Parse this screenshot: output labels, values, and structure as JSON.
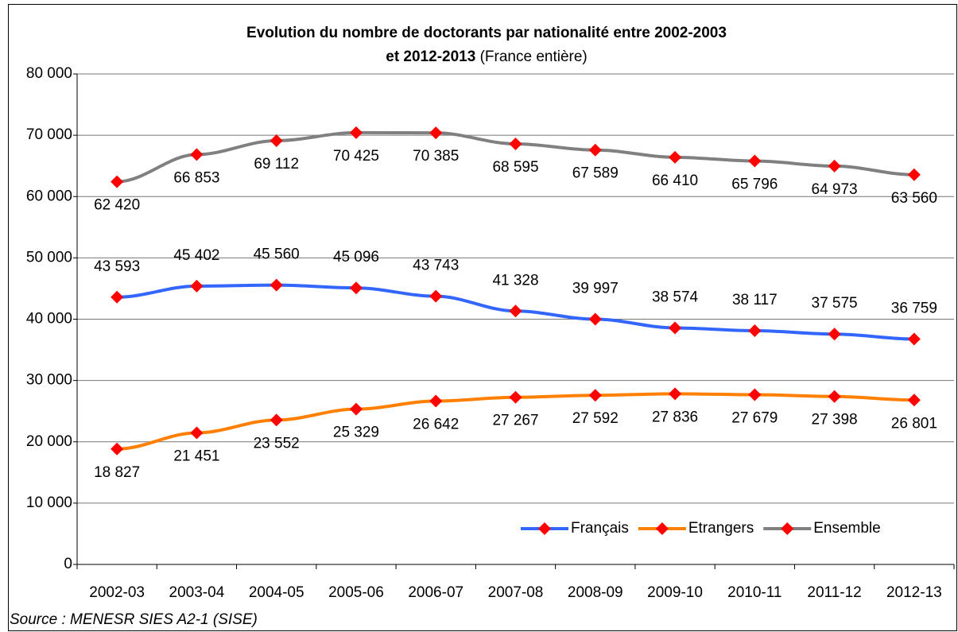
{
  "chart_data": {
    "type": "line",
    "title": [
      "Evolution du nombre de doctorants par nationalité entre 2002-2003",
      "et 2012-2013"
    ],
    "subtitle": "(France entière)",
    "source": "Source : MENESR SIES A2-1 (SISE)",
    "categories": [
      "2002-03",
      "2003-04",
      "2004-05",
      "2005-06",
      "2006-07",
      "2007-08",
      "2008-09",
      "2009-10",
      "2010-11",
      "2011-12",
      "2012-13"
    ],
    "series": [
      {
        "name": "Français",
        "color": "#3366ff",
        "marker_color": "#ff0000",
        "values": [
          43593,
          45402,
          45560,
          45096,
          43743,
          41328,
          39997,
          38574,
          38117,
          37575,
          36759
        ],
        "value_labels": [
          "43 593",
          "45 402",
          "45 560",
          "45 096",
          "43 743",
          "41 328",
          "39 997",
          "38 574",
          "38 117",
          "37 575",
          "36 759"
        ]
      },
      {
        "name": "Etrangers",
        "color": "#ff7f00",
        "marker_color": "#ff0000",
        "values": [
          18827,
          21451,
          23552,
          25329,
          26642,
          27267,
          27592,
          27836,
          27679,
          27398,
          26801
        ],
        "value_labels": [
          "18 827",
          "21 451",
          "23 552",
          "25 329",
          "26 642",
          "27 267",
          "27 592",
          "27 836",
          "27 679",
          "27 398",
          "26 801"
        ]
      },
      {
        "name": "Ensemble",
        "color": "#808080",
        "marker_color": "#ff0000",
        "values": [
          62420,
          66853,
          69112,
          70425,
          70385,
          68595,
          67589,
          66410,
          65796,
          64973,
          63560
        ],
        "value_labels": [
          "62 420",
          "66 853",
          "69 112",
          "70 425",
          "70 385",
          "68 595",
          "67 589",
          "66 410",
          "65 796",
          "64 973",
          "63 560"
        ]
      }
    ],
    "ylim": [
      0,
      80000
    ],
    "yticks": [
      0,
      {
        "value": 10000,
        "label": "10 000"
      },
      {
        "value": 20000,
        "label": "20 000"
      },
      {
        "value": 30000,
        "label": "30 000"
      },
      {
        "value": 40000,
        "label": "40 000"
      },
      {
        "value": 50000,
        "label": "50 000"
      },
      {
        "value": 60000,
        "label": "60 000"
      },
      {
        "value": 70000,
        "label": "70 000"
      },
      {
        "value": 80000,
        "label": "80 000"
      }
    ],
    "grid": true,
    "legend": "lower right"
  }
}
